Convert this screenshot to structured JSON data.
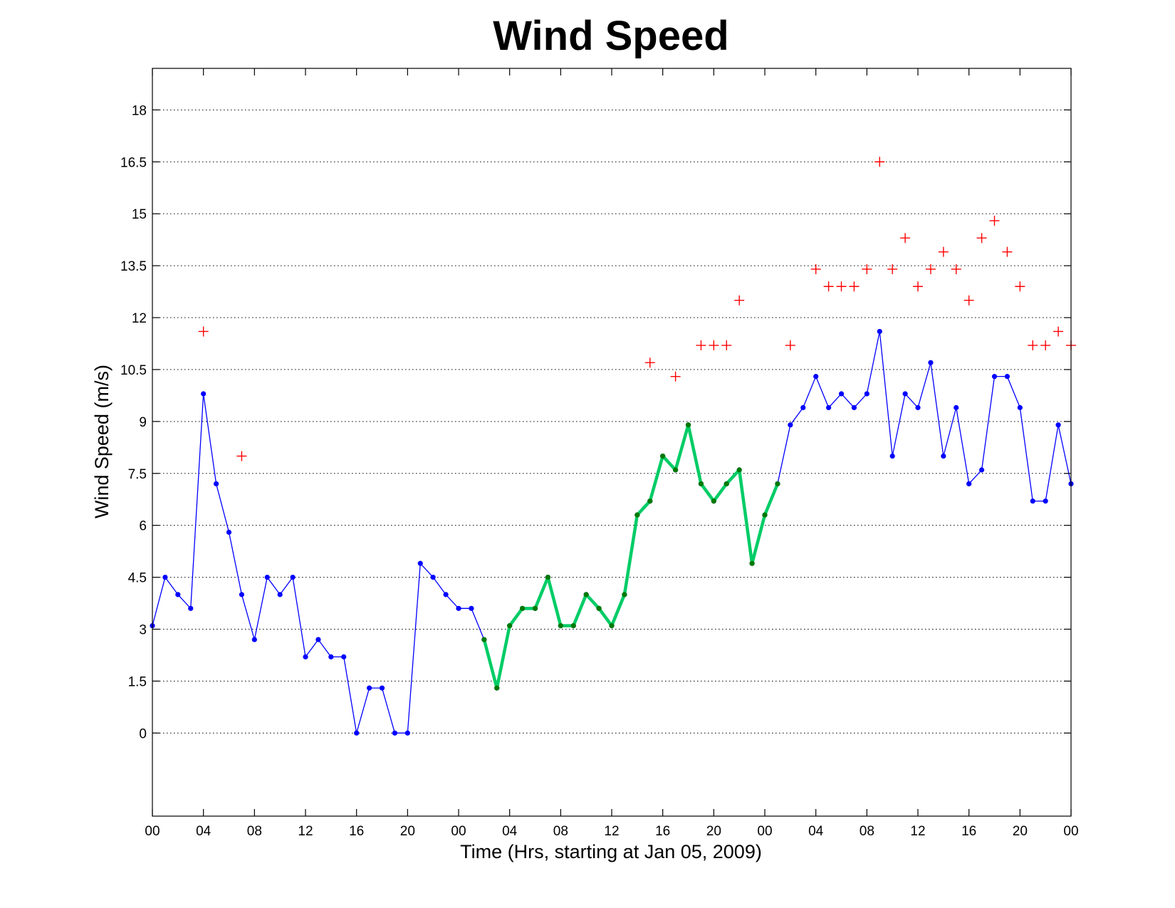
{
  "chart_data": {
    "type": "line",
    "title": "Wind Speed",
    "xlabel": "Time (Hrs, starting at Jan 05, 2009)",
    "ylabel": "Wind Speed (m/s)",
    "xlim": [
      0,
      72
    ],
    "ylim": [
      -2.4,
      19.2
    ],
    "x_ticks": [
      0,
      4,
      8,
      12,
      16,
      20,
      24,
      28,
      32,
      36,
      40,
      44,
      48,
      52,
      56,
      60,
      64,
      68,
      72
    ],
    "x_tick_labels": [
      "00",
      "04",
      "08",
      "12",
      "16",
      "20",
      "00",
      "04",
      "08",
      "12",
      "16",
      "20",
      "00",
      "04",
      "08",
      "12",
      "16",
      "20",
      "00"
    ],
    "y_ticks": [
      0,
      1.5,
      3,
      4.5,
      6,
      7.5,
      9,
      10.5,
      12,
      13.5,
      15,
      16.5,
      18
    ],
    "y_tick_labels": [
      "0",
      "1.5",
      "3",
      "4.5",
      "6",
      "7.5",
      "9",
      "10.5",
      "12",
      "13.5",
      "15",
      "16.5",
      "18"
    ],
    "grid": "horizontal dotted",
    "colors": {
      "blue_series": "#0000ff",
      "green_series": "#00cc66",
      "green_markers": "#007a00",
      "red_markers": "#ff0000"
    },
    "series": [
      {
        "style": "blue line with dot markers",
        "x": [
          0,
          1,
          2,
          3,
          4,
          5,
          6,
          7,
          8,
          9,
          10,
          11,
          12,
          13,
          14,
          15,
          16,
          17,
          18,
          19,
          20,
          21,
          22,
          23,
          24,
          25,
          26,
          27,
          28,
          29,
          30,
          31,
          32,
          33,
          34,
          35,
          36,
          37,
          38,
          39,
          40,
          41,
          42,
          43,
          44,
          45,
          46,
          47,
          48,
          49,
          50,
          51,
          52,
          53,
          54,
          55,
          56,
          57,
          58,
          59,
          60,
          61,
          62,
          63,
          64,
          65,
          66,
          67,
          68,
          69,
          70,
          71,
          72
        ],
        "y": [
          3.1,
          4.5,
          4.0,
          3.6,
          9.8,
          7.2,
          5.8,
          4.0,
          2.7,
          4.5,
          4.0,
          4.5,
          2.2,
          2.7,
          2.2,
          2.2,
          0.0,
          1.3,
          1.3,
          0.0,
          0.0,
          4.9,
          4.5,
          4.0,
          3.6,
          3.6,
          2.7,
          1.3,
          3.1,
          3.6,
          3.6,
          4.5,
          3.1,
          3.1,
          4.0,
          3.6,
          3.1,
          4.0,
          6.3,
          6.7,
          8.0,
          7.6,
          8.9,
          7.2,
          6.7,
          7.2,
          7.6,
          4.9,
          6.3,
          7.2,
          8.9,
          9.4,
          10.3,
          9.4,
          9.8,
          9.4,
          9.8,
          11.6,
          8.0,
          9.8,
          9.4,
          10.7,
          8.0,
          9.4,
          7.2,
          7.6,
          10.3,
          10.3,
          9.4,
          6.7,
          6.7,
          8.9,
          7.2
        ]
      },
      {
        "style": "thick green line with dark green dot markers",
        "x": [
          26,
          27,
          28,
          29,
          30,
          31,
          32,
          33,
          34,
          35,
          36,
          37,
          38,
          39,
          40,
          41,
          42,
          43,
          44,
          45,
          46,
          47,
          48,
          49
        ],
        "y": [
          2.7,
          1.3,
          3.1,
          3.6,
          3.6,
          4.5,
          3.1,
          3.1,
          4.0,
          3.6,
          3.1,
          4.0,
          6.3,
          6.7,
          8.0,
          7.6,
          8.9,
          7.2,
          6.7,
          7.2,
          7.6,
          4.9,
          6.3,
          7.2
        ]
      },
      {
        "style": "red plus markers",
        "x": [
          4,
          7,
          39,
          41,
          43,
          44,
          45,
          46,
          50,
          52,
          53,
          54,
          55,
          56,
          57,
          58,
          59,
          60,
          61,
          62,
          63,
          64,
          65,
          66,
          67,
          68,
          69,
          70,
          71,
          72
        ],
        "y": [
          11.6,
          8.0,
          10.7,
          10.3,
          11.2,
          11.2,
          11.2,
          12.5,
          11.2,
          13.4,
          12.9,
          12.9,
          12.9,
          13.4,
          16.5,
          13.4,
          14.3,
          12.9,
          13.4,
          13.9,
          13.4,
          12.5,
          14.3,
          14.8,
          13.9,
          12.9,
          11.2,
          11.2,
          11.6,
          11.2
        ]
      }
    ]
  }
}
